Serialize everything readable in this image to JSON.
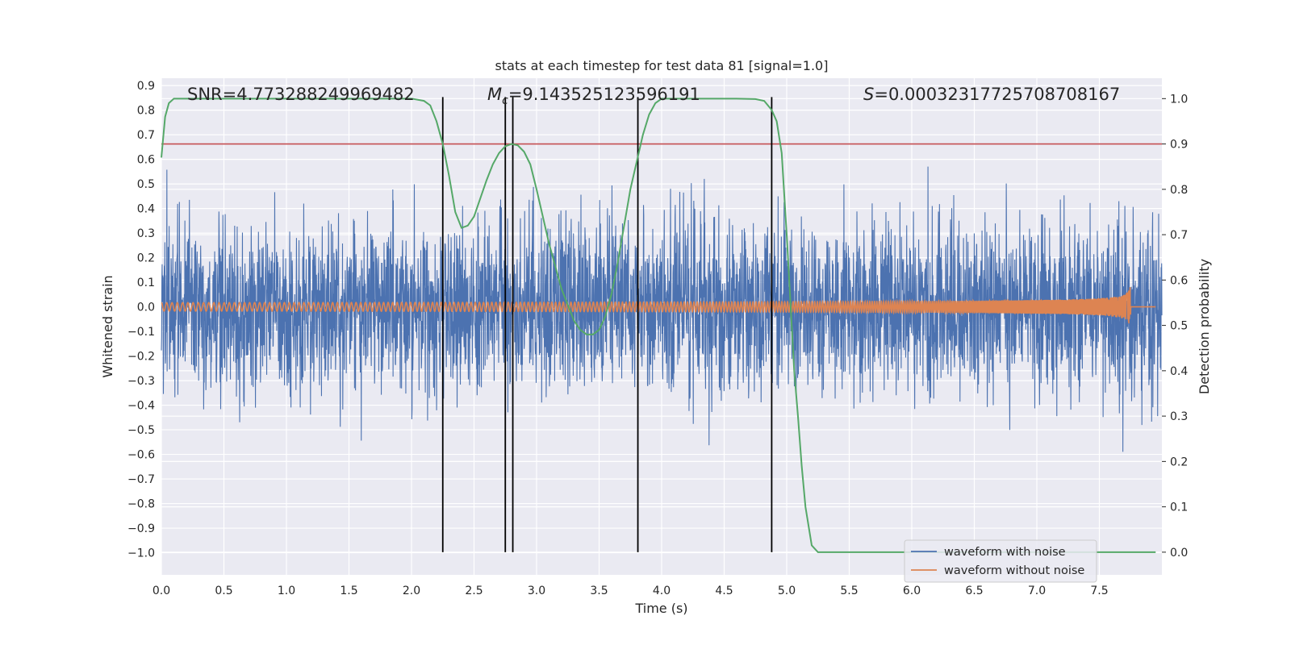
{
  "chart_data": {
    "type": "line",
    "title": "stats at each timestep for test data 81 [signal=1.0]",
    "xlabel": "Time (s)",
    "ylabel": "Whitened strain",
    "y2label": "Detection probability",
    "xlim": [
      0.0,
      8.0
    ],
    "ylim": [
      -1.09,
      0.93
    ],
    "y2lim": [
      -0.05,
      1.045
    ],
    "xticks": [
      "0.0",
      "0.5",
      "1.0",
      "1.5",
      "2.0",
      "2.5",
      "3.0",
      "3.5",
      "4.0",
      "4.5",
      "5.0",
      "5.5",
      "6.0",
      "6.5",
      "7.0",
      "7.5"
    ],
    "yticks": [
      "0.9",
      "0.8",
      "0.7",
      "0.6",
      "0.5",
      "0.4",
      "0.3",
      "0.2",
      "0.1",
      "0.0",
      "−0.1",
      "−0.2",
      "−0.3",
      "−0.4",
      "−0.5",
      "−0.6",
      "−0.7",
      "−0.8",
      "−0.9",
      "−1.0"
    ],
    "y2ticks": [
      "1.0",
      "0.9",
      "0.8",
      "0.7",
      "0.6",
      "0.5",
      "0.4",
      "0.3",
      "0.2",
      "0.1",
      "0.0"
    ],
    "grid": true,
    "legend": {
      "placement": "lower-right",
      "entries": [
        "waveform with noise",
        "waveform without noise"
      ]
    },
    "annotations": {
      "snr": "SNR=4.773288249969482",
      "mc_symbol": "M",
      "mc_sub": "c",
      "mc_value": "=9.143525123596191",
      "s_symbol": "S",
      "s_value": "=0.00032317725708708167"
    },
    "threshold": 0.9,
    "vlines_x": [
      2.25,
      2.75,
      2.81,
      3.81,
      4.88
    ],
    "series": [
      {
        "name": "waveform with noise",
        "color": "#4c72b0",
        "noise_sigma": 0.17,
        "x_range": [
          0.0,
          8.0
        ],
        "samples": 4000
      },
      {
        "name": "waveform without noise",
        "color": "#dd8452",
        "chirp_end_x": 7.75,
        "peak_amplitude": 0.16
      },
      {
        "name": "Detection probability",
        "color": "#55a868",
        "axis": "right",
        "x": [
          0.0,
          0.03,
          0.06,
          0.1,
          0.2,
          0.4,
          0.8,
          1.2,
          1.6,
          1.9,
          2.0,
          2.1,
          2.15,
          2.2,
          2.25,
          2.3,
          2.35,
          2.4,
          2.45,
          2.5,
          2.55,
          2.6,
          2.65,
          2.7,
          2.75,
          2.8,
          2.85,
          2.9,
          2.95,
          3.0,
          3.05,
          3.1,
          3.15,
          3.2,
          3.25,
          3.3,
          3.35,
          3.4,
          3.45,
          3.5,
          3.55,
          3.6,
          3.65,
          3.7,
          3.75,
          3.8,
          3.85,
          3.9,
          3.95,
          4.0,
          4.05,
          4.1,
          4.2,
          4.4,
          4.6,
          4.75,
          4.82,
          4.88,
          4.92,
          4.96,
          5.0,
          5.03,
          5.06,
          5.09,
          5.12,
          5.15,
          5.2,
          5.25,
          5.3,
          5.5,
          6.0,
          7.0,
          7.5,
          7.95
        ],
        "y": [
          0.87,
          0.96,
          0.99,
          1.0,
          1.0,
          1.0,
          1.0,
          1.0,
          1.0,
          1.0,
          1.0,
          0.995,
          0.985,
          0.95,
          0.9,
          0.83,
          0.75,
          0.715,
          0.72,
          0.74,
          0.78,
          0.82,
          0.855,
          0.88,
          0.895,
          0.9,
          0.897,
          0.883,
          0.855,
          0.8,
          0.74,
          0.68,
          0.63,
          0.58,
          0.545,
          0.51,
          0.49,
          0.48,
          0.48,
          0.49,
          0.52,
          0.57,
          0.64,
          0.72,
          0.8,
          0.86,
          0.92,
          0.965,
          0.99,
          1.0,
          1.0,
          1.0,
          1.0,
          1.0,
          1.0,
          0.999,
          0.995,
          0.975,
          0.95,
          0.88,
          0.7,
          0.55,
          0.4,
          0.3,
          0.19,
          0.1,
          0.015,
          0.0,
          0.0,
          0.0,
          0.0,
          0.0,
          0.0,
          0.0
        ]
      }
    ]
  }
}
